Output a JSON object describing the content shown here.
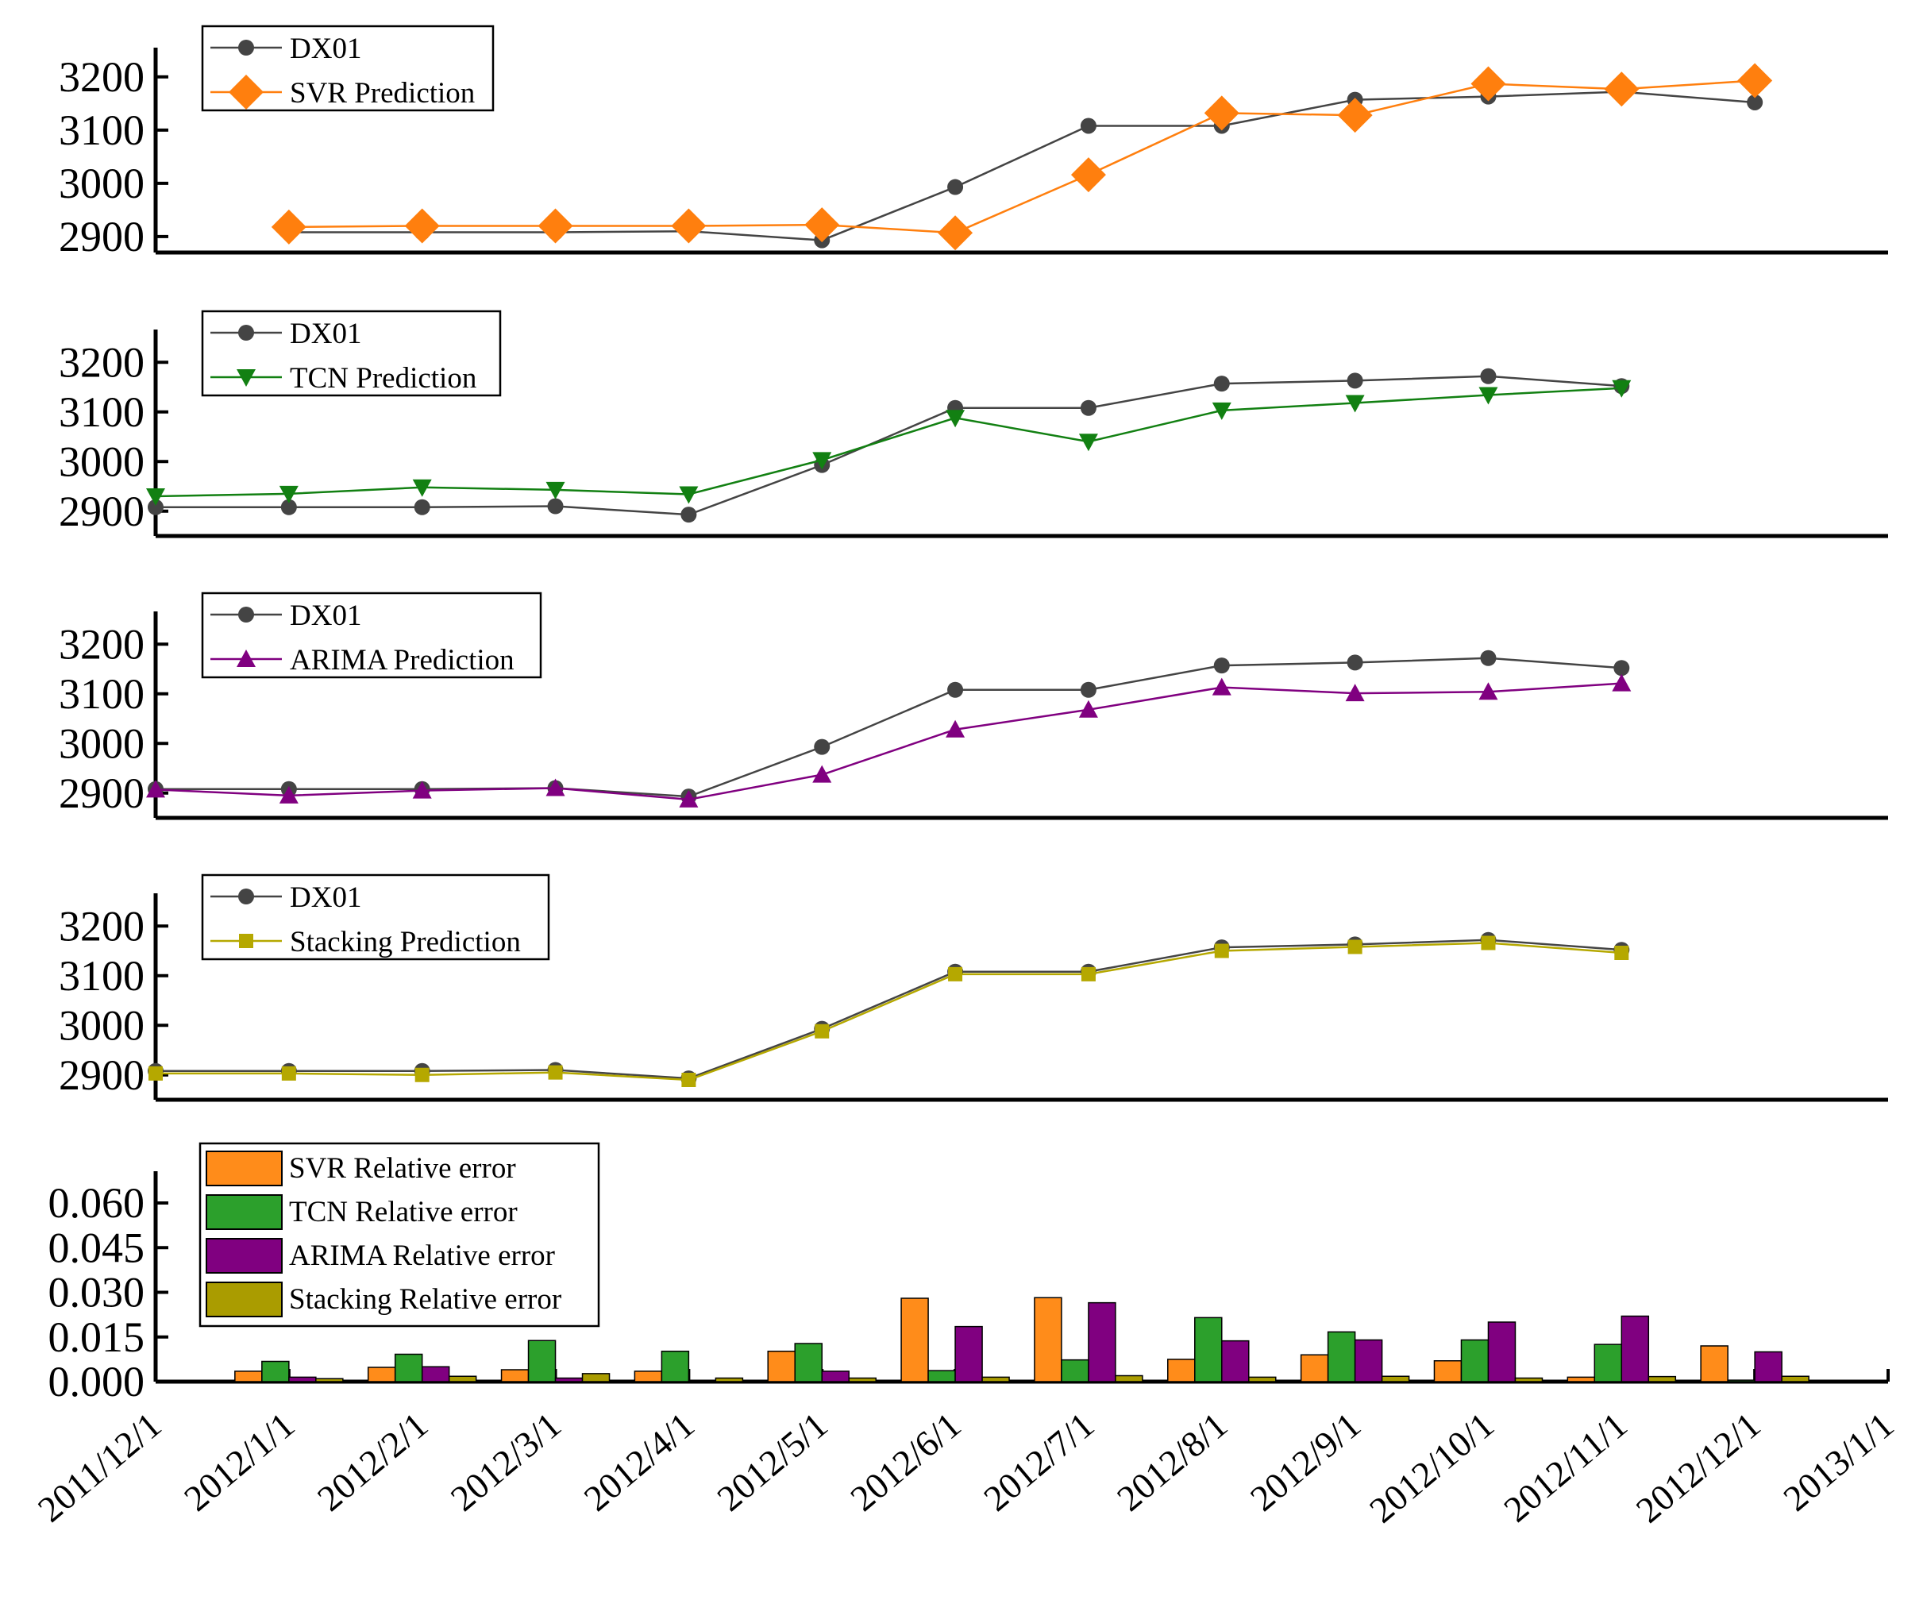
{
  "chart_data": [
    {
      "type": "line",
      "x": [
        "2012/1/1",
        "2012/2/1",
        "2012/3/1",
        "2012/4/1",
        "2012/5/1",
        "2012/6/1",
        "2012/7/1",
        "2012/8/1",
        "2012/9/1",
        "2012/10/1",
        "2012/11/1",
        "2012/12/1"
      ],
      "series": [
        {
          "name": "DX01",
          "color": "#444444",
          "marker": "circle",
          "x": [
            "2012/1/1",
            "2012/2/1",
            "2012/3/1",
            "2012/4/1",
            "2012/5/1",
            "2012/6/1",
            "2012/7/1",
            "2012/8/1",
            "2012/9/1",
            "2012/10/1",
            "2012/11/1",
            "2012/12/1"
          ],
          "values": [
            2908,
            2908,
            2908,
            2910,
            2893,
            2993,
            3108,
            3108,
            3157,
            3163,
            3172,
            3152
          ]
        },
        {
          "name": "SVR Prediction",
          "color": "#ff7f0e",
          "marker": "diamond",
          "x": [
            "2012/1/1",
            "2012/2/1",
            "2012/3/1",
            "2012/4/1",
            "2012/5/1",
            "2012/6/1",
            "2012/7/1",
            "2012/8/1",
            "2012/9/1",
            "2012/10/1",
            "2012/11/1",
            "2012/12/1"
          ],
          "values": [
            2918,
            2920,
            2920,
            2920,
            2922,
            2907,
            3016,
            3132,
            3128,
            3187,
            3177,
            3193
          ]
        }
      ],
      "yticks": [
        "2900",
        "3000",
        "3100",
        "3200"
      ],
      "ylim": [
        2870,
        3240
      ]
    },
    {
      "type": "line",
      "series": [
        {
          "name": "DX01",
          "color": "#444444",
          "marker": "circle",
          "x": [
            "2011/12/1",
            "2012/1/1",
            "2012/2/1",
            "2012/3/1",
            "2012/4/1",
            "2012/5/1",
            "2012/6/1",
            "2012/7/1",
            "2012/8/1",
            "2012/9/1",
            "2012/10/1",
            "2012/11/1"
          ],
          "values": [
            2908,
            2908,
            2908,
            2910,
            2893,
            2993,
            3108,
            3108,
            3157,
            3163,
            3172,
            3152
          ]
        },
        {
          "name": "TCN Prediction",
          "color": "#128012",
          "marker": "triangle-down",
          "x": [
            "2011/12/1",
            "2012/1/1",
            "2012/2/1",
            "2012/3/1",
            "2012/4/1",
            "2012/5/1",
            "2012/6/1",
            "2012/7/1",
            "2012/8/1",
            "2012/9/1",
            "2012/10/1",
            "2012/11/1"
          ],
          "values": [
            2930,
            2935,
            2948,
            2943,
            2934,
            3003,
            3088,
            3040,
            3103,
            3118,
            3134,
            3148
          ]
        }
      ],
      "yticks": [
        "2900",
        "3000",
        "3100",
        "3200"
      ],
      "ylim": [
        2850,
        3250
      ]
    },
    {
      "type": "line",
      "series": [
        {
          "name": "DX01",
          "color": "#444444",
          "marker": "circle",
          "x": [
            "2011/12/1",
            "2012/1/1",
            "2012/2/1",
            "2012/3/1",
            "2012/4/1",
            "2012/5/1",
            "2012/6/1",
            "2012/7/1",
            "2012/8/1",
            "2012/9/1",
            "2012/10/1",
            "2012/11/1"
          ],
          "values": [
            2908,
            2908,
            2908,
            2910,
            2893,
            2993,
            3108,
            3108,
            3157,
            3163,
            3172,
            3152
          ]
        },
        {
          "name": "ARIMA Prediction",
          "color": "#800080",
          "marker": "triangle-up",
          "x": [
            "2011/12/1",
            "2012/1/1",
            "2012/2/1",
            "2012/3/1",
            "2012/4/1",
            "2012/5/1",
            "2012/6/1",
            "2012/7/1",
            "2012/8/1",
            "2012/9/1",
            "2012/10/1",
            "2012/11/1"
          ],
          "values": [
            2907,
            2895,
            2905,
            2910,
            2887,
            2937,
            3028,
            3068,
            3113,
            3101,
            3104,
            3121
          ]
        }
      ],
      "yticks": [
        "2900",
        "3000",
        "3100",
        "3200"
      ],
      "ylim": [
        2850,
        3250
      ]
    },
    {
      "type": "line",
      "series": [
        {
          "name": "DX01",
          "color": "#444444",
          "marker": "circle",
          "x": [
            "2011/12/1",
            "2012/1/1",
            "2012/2/1",
            "2012/3/1",
            "2012/4/1",
            "2012/5/1",
            "2012/6/1",
            "2012/7/1",
            "2012/8/1",
            "2012/9/1",
            "2012/10/1",
            "2012/11/1"
          ],
          "values": [
            2908,
            2908,
            2908,
            2910,
            2893,
            2993,
            3108,
            3108,
            3157,
            3163,
            3172,
            3152
          ]
        },
        {
          "name": "Stacking Prediction",
          "color": "#b5a800",
          "marker": "square",
          "x": [
            "2011/12/1",
            "2012/1/1",
            "2012/2/1",
            "2012/3/1",
            "2012/4/1",
            "2012/5/1",
            "2012/6/1",
            "2012/7/1",
            "2012/8/1",
            "2012/9/1",
            "2012/10/1",
            "2012/11/1"
          ],
          "values": [
            2903,
            2903,
            2900,
            2905,
            2890,
            2988,
            3103,
            3103,
            3150,
            3158,
            3166,
            3146
          ]
        }
      ],
      "yticks": [
        "2900",
        "3000",
        "3100",
        "3200"
      ],
      "ylim": [
        2850,
        3250
      ]
    },
    {
      "type": "bar",
      "categories": [
        "2012/1/1",
        "2012/2/1",
        "2012/3/1",
        "2012/4/1",
        "2012/5/1",
        "2012/6/1",
        "2012/7/1",
        "2012/8/1",
        "2012/9/1",
        "2012/10/1",
        "2012/11/1",
        "2012/12/1"
      ],
      "series": [
        {
          "name": "SVR Relative error",
          "color": "#ff8c1a",
          "values": [
            0.0035,
            0.0048,
            0.004,
            0.0035,
            0.0102,
            0.028,
            0.0282,
            0.0075,
            0.009,
            0.007,
            0.0015,
            0.012
          ]
        },
        {
          "name": "TCN Relative error",
          "color": "#2ca02c",
          "values": [
            0.0068,
            0.0092,
            0.0138,
            0.0102,
            0.0128,
            0.0037,
            0.0073,
            0.0215,
            0.0167,
            0.014,
            0.0125,
            0.0005
          ]
        },
        {
          "name": "ARIMA Relative error",
          "color": "#800080",
          "values": [
            0.0015,
            0.005,
            0.0012,
            0.0002,
            0.0035,
            0.0185,
            0.0265,
            0.0137,
            0.014,
            0.02,
            0.022,
            0.01
          ]
        },
        {
          "name": "Stacking Relative error",
          "color": "#aa9c00",
          "values": [
            0.001,
            0.0018,
            0.0027,
            0.0012,
            0.0012,
            0.0015,
            0.002,
            0.0015,
            0.0018,
            0.0012,
            0.0017,
            0.0018
          ]
        }
      ],
      "yticks": [
        "0.000",
        "0.015",
        "0.030",
        "0.045",
        "0.060"
      ],
      "ylim": [
        0,
        0.068
      ]
    }
  ],
  "x_axis": {
    "ticks": [
      "2011/12/1",
      "2012/1/1",
      "2012/2/1",
      "2012/3/1",
      "2012/4/1",
      "2012/5/1",
      "2012/6/1",
      "2012/7/1",
      "2012/8/1",
      "2012/9/1",
      "2012/10/1",
      "2012/11/1",
      "2012/12/1",
      "2013/1/1"
    ]
  }
}
